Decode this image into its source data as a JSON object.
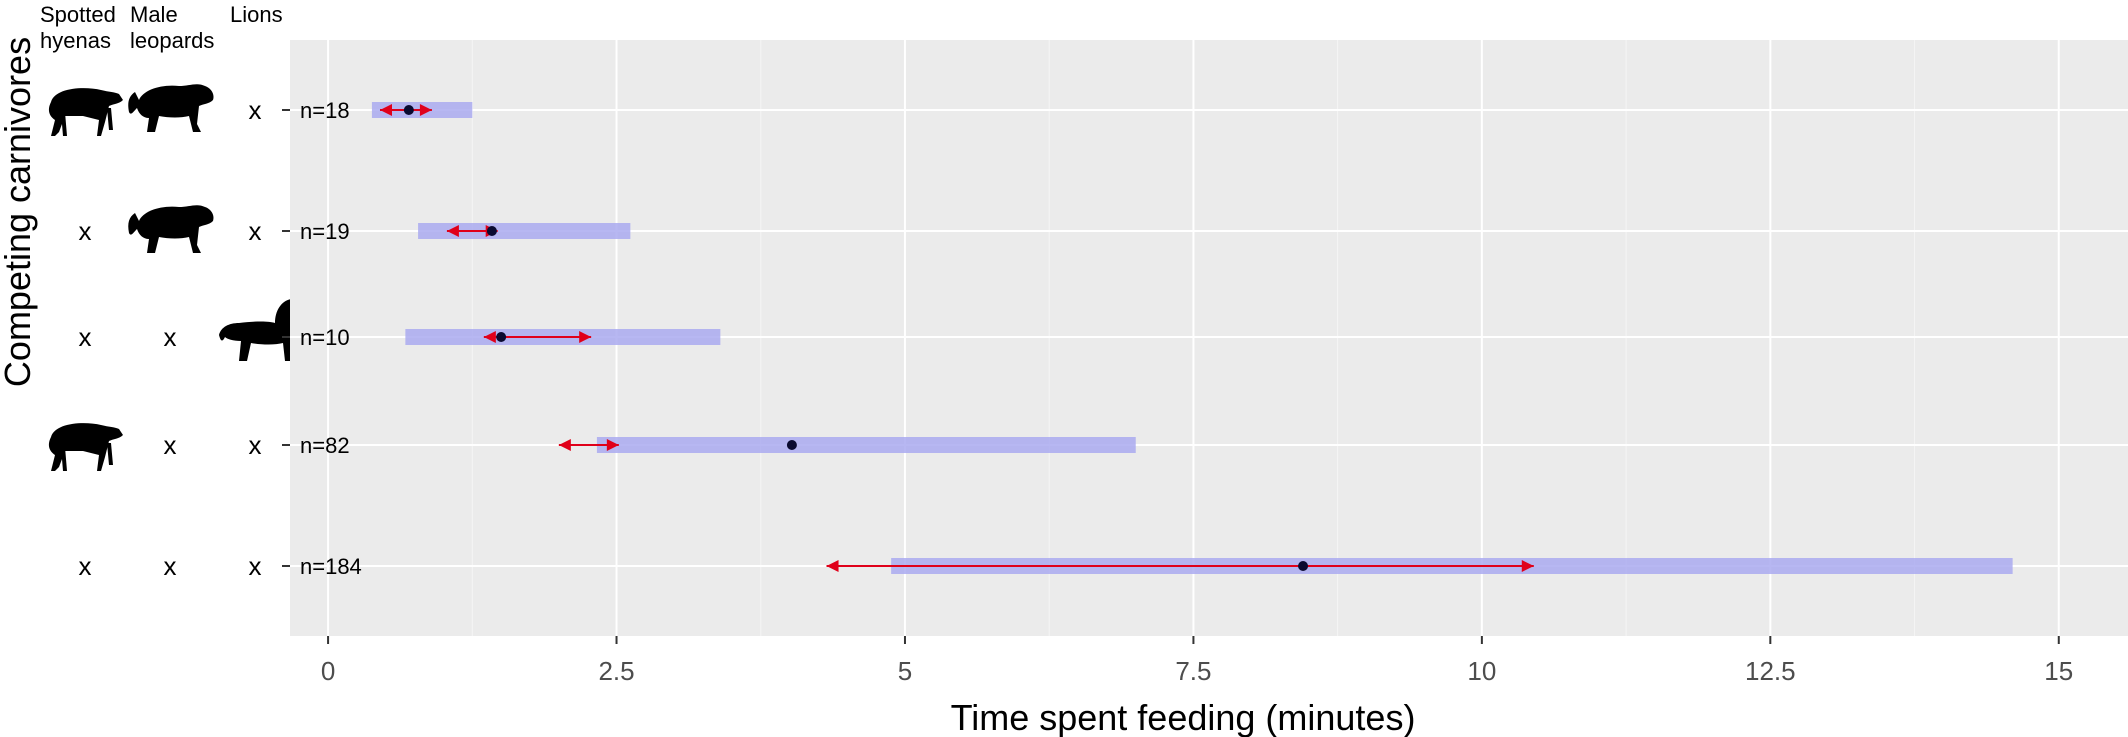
{
  "chart_data": {
    "type": "range-dot",
    "xlabel": "Time spent feeding (minutes)",
    "ylabel": "Competing carnivores",
    "xlim": [
      -0.33,
      15.6
    ],
    "xticks": [
      0,
      2.5,
      5,
      7.5,
      10,
      12.5,
      15
    ],
    "xtick_labels": [
      "0",
      "2.5",
      "5",
      "7.5",
      "10",
      "12.5",
      "15"
    ],
    "grid": true,
    "columns": [
      {
        "label": [
          "Spotted",
          "hyenas"
        ]
      },
      {
        "label": [
          "Male",
          "leopards"
        ]
      },
      {
        "label": [
          "Lions"
        ]
      }
    ],
    "rows": [
      {
        "n_label": "n=18",
        "competitors": [
          "hyena-silhouette",
          "leopard-silhouette",
          "x"
        ],
        "range": [
          0.38,
          1.25
        ],
        "point": 0.7,
        "ci": [
          0.45,
          0.9
        ]
      },
      {
        "n_label": "n=19",
        "competitors": [
          "x",
          "leopard-silhouette",
          "x"
        ],
        "range": [
          0.78,
          2.62
        ],
        "point": 1.42,
        "ci": [
          1.03,
          1.47
        ]
      },
      {
        "n_label": "n=10",
        "competitors": [
          "x",
          "x",
          "lion-silhouette"
        ],
        "range": [
          0.67,
          3.4
        ],
        "point": 1.5,
        "ci": [
          1.35,
          2.28
        ]
      },
      {
        "n_label": "n=82",
        "competitors": [
          "hyena-silhouette",
          "x",
          "x"
        ],
        "range": [
          2.33,
          7.0
        ],
        "point": 4.02,
        "ci": [
          2.0,
          2.52
        ]
      },
      {
        "n_label": "n=184",
        "competitors": [
          "x",
          "x",
          "x"
        ],
        "range": [
          4.88,
          14.6
        ],
        "point": 8.45,
        "ci": [
          4.32,
          10.45
        ]
      }
    ],
    "colors": {
      "panel": "#ebebeb",
      "grid": "#ffffff",
      "range": "#aaaaf0",
      "ci": "#e0001a",
      "point": "#0a0a30"
    }
  }
}
